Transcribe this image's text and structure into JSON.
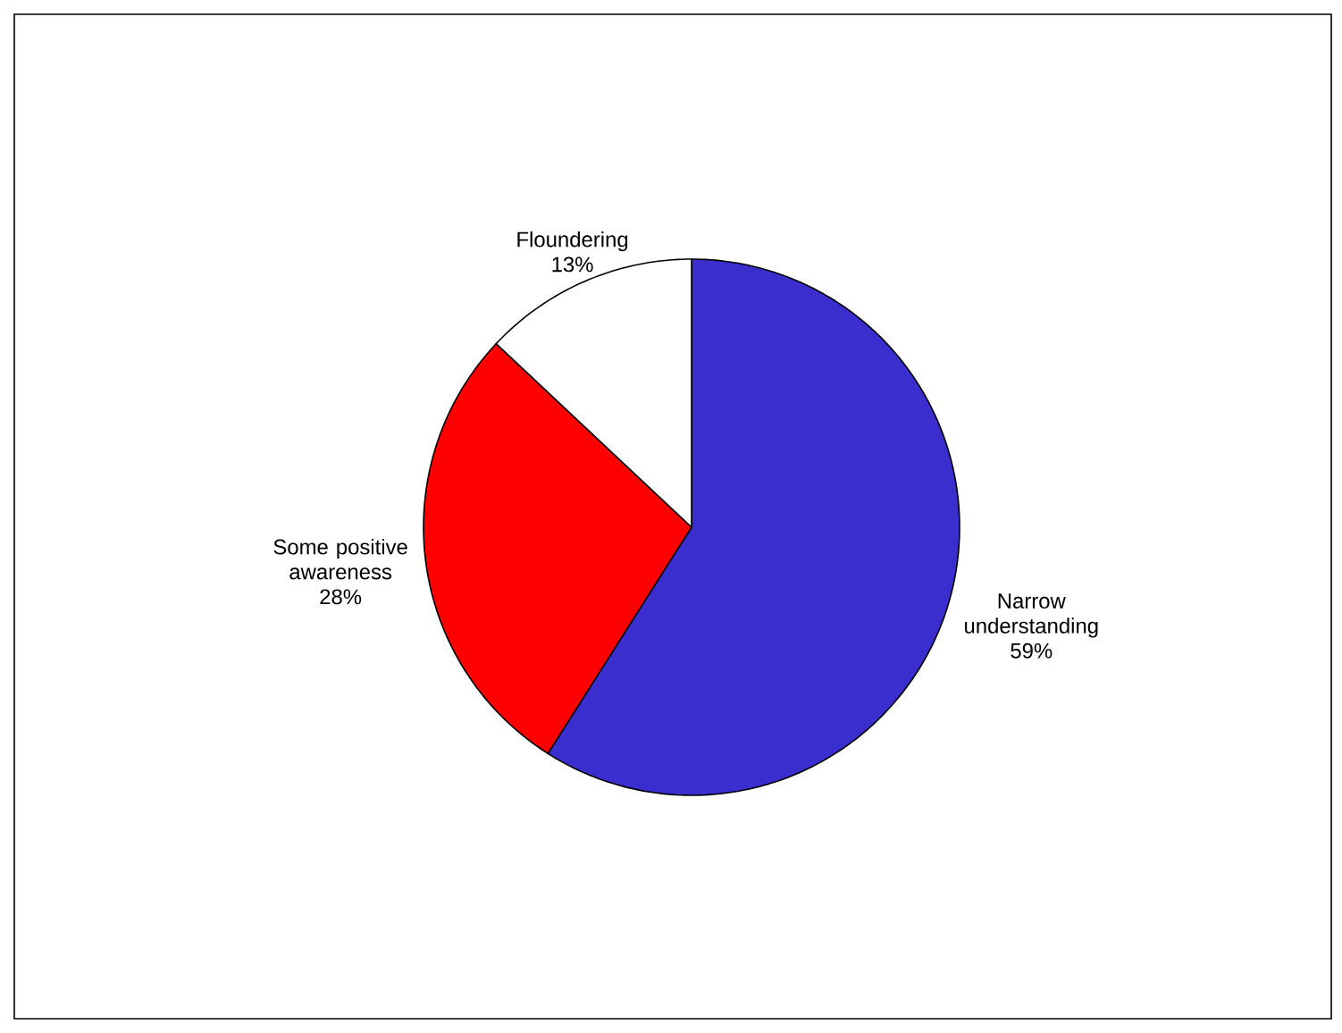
{
  "chart_data": {
    "type": "pie",
    "categories": [
      "Narrow understanding",
      "Some positive awareness",
      "Floundering"
    ],
    "values": [
      59,
      28,
      13
    ],
    "colors": [
      "#3b2ecf",
      "#ff0000",
      "#ffffff"
    ],
    "value_labels": [
      "59%",
      "28%",
      "13%"
    ]
  }
}
